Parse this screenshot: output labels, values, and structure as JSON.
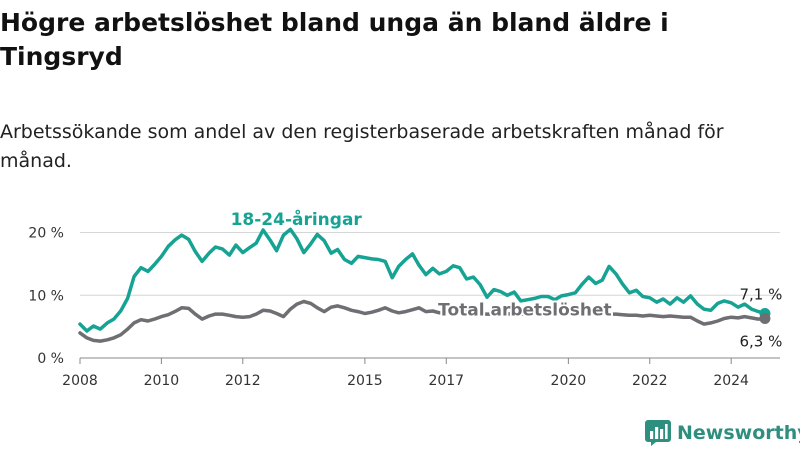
{
  "title": "Högre arbetslöshet bland unga än bland äldre i Tingsryd",
  "subtitle": "Arbetssökande som andel av den registerbaserade arbetskraften månad för månad.",
  "brand": {
    "name": "Newsworthy",
    "icon": "newsworthy-bar-chart-icon",
    "color": "#2f8f7f"
  },
  "chart_data": {
    "type": "line",
    "xlim": [
      2008,
      2025.2
    ],
    "ylim": [
      0,
      22
    ],
    "x_ticks": [
      2008,
      2010,
      2012,
      2015,
      2017,
      2020,
      2022,
      2024
    ],
    "y_ticks": [
      {
        "value": 0,
        "label": "0 %"
      },
      {
        "value": 10,
        "label": "10 %"
      },
      {
        "value": 20,
        "label": "20 %"
      }
    ],
    "grid": true,
    "series": [
      {
        "name": "18-24-åringar",
        "color": "#16a393",
        "end_label": "7,1 %",
        "points": [
          [
            2008.0,
            5.4
          ],
          [
            2008.17,
            4.3
          ],
          [
            2008.33,
            5.1
          ],
          [
            2008.5,
            4.6
          ],
          [
            2008.67,
            5.6
          ],
          [
            2008.83,
            6.2
          ],
          [
            2009.0,
            7.5
          ],
          [
            2009.17,
            9.5
          ],
          [
            2009.33,
            13.0
          ],
          [
            2009.5,
            14.4
          ],
          [
            2009.67,
            13.8
          ],
          [
            2009.83,
            14.9
          ],
          [
            2010.0,
            16.2
          ],
          [
            2010.17,
            17.8
          ],
          [
            2010.33,
            18.8
          ],
          [
            2010.5,
            19.6
          ],
          [
            2010.67,
            18.9
          ],
          [
            2010.83,
            17.0
          ],
          [
            2011.0,
            15.4
          ],
          [
            2011.17,
            16.7
          ],
          [
            2011.33,
            17.7
          ],
          [
            2011.5,
            17.4
          ],
          [
            2011.67,
            16.4
          ],
          [
            2011.83,
            18.0
          ],
          [
            2012.0,
            16.8
          ],
          [
            2012.17,
            17.6
          ],
          [
            2012.33,
            18.3
          ],
          [
            2012.5,
            20.4
          ],
          [
            2012.67,
            18.8
          ],
          [
            2012.83,
            17.1
          ],
          [
            2013.0,
            19.6
          ],
          [
            2013.17,
            20.5
          ],
          [
            2013.33,
            19.0
          ],
          [
            2013.5,
            16.8
          ],
          [
            2013.67,
            18.2
          ],
          [
            2013.83,
            19.7
          ],
          [
            2014.0,
            18.7
          ],
          [
            2014.17,
            16.7
          ],
          [
            2014.33,
            17.3
          ],
          [
            2014.5,
            15.7
          ],
          [
            2014.67,
            15.1
          ],
          [
            2014.83,
            16.2
          ],
          [
            2015.0,
            16.0
          ],
          [
            2015.17,
            15.8
          ],
          [
            2015.33,
            15.7
          ],
          [
            2015.5,
            15.4
          ],
          [
            2015.67,
            12.8
          ],
          [
            2015.83,
            14.6
          ],
          [
            2016.0,
            15.7
          ],
          [
            2016.17,
            16.6
          ],
          [
            2016.33,
            14.8
          ],
          [
            2016.5,
            13.3
          ],
          [
            2016.67,
            14.3
          ],
          [
            2016.83,
            13.4
          ],
          [
            2017.0,
            13.8
          ],
          [
            2017.17,
            14.7
          ],
          [
            2017.33,
            14.4
          ],
          [
            2017.5,
            12.6
          ],
          [
            2017.67,
            12.9
          ],
          [
            2017.83,
            11.7
          ],
          [
            2018.0,
            9.7
          ],
          [
            2018.17,
            10.9
          ],
          [
            2018.33,
            10.6
          ],
          [
            2018.5,
            10.0
          ],
          [
            2018.67,
            10.5
          ],
          [
            2018.83,
            9.1
          ],
          [
            2019.0,
            9.3
          ],
          [
            2019.17,
            9.5
          ],
          [
            2019.33,
            9.8
          ],
          [
            2019.5,
            9.8
          ],
          [
            2019.67,
            9.3
          ],
          [
            2019.83,
            9.9
          ],
          [
            2020.0,
            10.1
          ],
          [
            2020.17,
            10.4
          ],
          [
            2020.33,
            11.7
          ],
          [
            2020.5,
            12.9
          ],
          [
            2020.67,
            11.9
          ],
          [
            2020.83,
            12.4
          ],
          [
            2021.0,
            14.6
          ],
          [
            2021.17,
            13.4
          ],
          [
            2021.33,
            11.8
          ],
          [
            2021.5,
            10.4
          ],
          [
            2021.67,
            10.8
          ],
          [
            2021.83,
            9.8
          ],
          [
            2022.0,
            9.6
          ],
          [
            2022.17,
            8.9
          ],
          [
            2022.33,
            9.4
          ],
          [
            2022.5,
            8.6
          ],
          [
            2022.67,
            9.6
          ],
          [
            2022.83,
            8.9
          ],
          [
            2023.0,
            9.9
          ],
          [
            2023.17,
            8.6
          ],
          [
            2023.33,
            7.8
          ],
          [
            2023.5,
            7.6
          ],
          [
            2023.67,
            8.7
          ],
          [
            2023.83,
            9.1
          ],
          [
            2024.0,
            8.8
          ],
          [
            2024.17,
            8.1
          ],
          [
            2024.33,
            8.6
          ],
          [
            2024.5,
            7.8
          ],
          [
            2024.67,
            7.4
          ],
          [
            2024.83,
            7.1
          ]
        ]
      },
      {
        "name": "Total arbetslöshet",
        "color": "#6e6e73",
        "end_label": "6,3 %",
        "points": [
          [
            2008.0,
            4.0
          ],
          [
            2008.17,
            3.2
          ],
          [
            2008.33,
            2.8
          ],
          [
            2008.5,
            2.7
          ],
          [
            2008.67,
            2.9
          ],
          [
            2008.83,
            3.2
          ],
          [
            2009.0,
            3.7
          ],
          [
            2009.17,
            4.6
          ],
          [
            2009.33,
            5.6
          ],
          [
            2009.5,
            6.1
          ],
          [
            2009.67,
            5.9
          ],
          [
            2009.83,
            6.2
          ],
          [
            2010.0,
            6.6
          ],
          [
            2010.17,
            6.9
          ],
          [
            2010.33,
            7.4
          ],
          [
            2010.5,
            8.0
          ],
          [
            2010.67,
            7.9
          ],
          [
            2010.83,
            7.0
          ],
          [
            2011.0,
            6.2
          ],
          [
            2011.17,
            6.7
          ],
          [
            2011.33,
            7.0
          ],
          [
            2011.5,
            7.0
          ],
          [
            2011.67,
            6.8
          ],
          [
            2011.83,
            6.6
          ],
          [
            2012.0,
            6.5
          ],
          [
            2012.17,
            6.6
          ],
          [
            2012.33,
            7.0
          ],
          [
            2012.5,
            7.6
          ],
          [
            2012.67,
            7.5
          ],
          [
            2012.83,
            7.1
          ],
          [
            2013.0,
            6.6
          ],
          [
            2013.17,
            7.8
          ],
          [
            2013.33,
            8.6
          ],
          [
            2013.5,
            9.0
          ],
          [
            2013.67,
            8.7
          ],
          [
            2013.83,
            8.0
          ],
          [
            2014.0,
            7.4
          ],
          [
            2014.17,
            8.1
          ],
          [
            2014.33,
            8.3
          ],
          [
            2014.5,
            8.0
          ],
          [
            2014.67,
            7.6
          ],
          [
            2014.83,
            7.4
          ],
          [
            2015.0,
            7.1
          ],
          [
            2015.17,
            7.3
          ],
          [
            2015.33,
            7.6
          ],
          [
            2015.5,
            8.0
          ],
          [
            2015.67,
            7.5
          ],
          [
            2015.83,
            7.2
          ],
          [
            2016.0,
            7.4
          ],
          [
            2016.17,
            7.7
          ],
          [
            2016.33,
            8.0
          ],
          [
            2016.5,
            7.4
          ],
          [
            2016.67,
            7.5
          ],
          [
            2016.83,
            7.2
          ],
          [
            2017.0,
            7.1
          ],
          [
            2017.17,
            7.3
          ],
          [
            2017.33,
            7.6
          ],
          [
            2017.5,
            7.4
          ],
          [
            2017.67,
            7.2
          ],
          [
            2017.83,
            7.0
          ],
          [
            2018.0,
            7.0
          ],
          [
            2018.17,
            7.0
          ],
          [
            2018.33,
            7.1
          ],
          [
            2018.5,
            7.0
          ],
          [
            2018.67,
            7.1
          ],
          [
            2018.83,
            7.0
          ],
          [
            2019.0,
            7.0
          ],
          [
            2019.17,
            7.1
          ],
          [
            2019.33,
            7.1
          ],
          [
            2019.5,
            7.0
          ],
          [
            2019.67,
            7.1
          ],
          [
            2019.83,
            7.0
          ],
          [
            2020.0,
            7.1
          ],
          [
            2020.17,
            7.2
          ],
          [
            2020.33,
            7.4
          ],
          [
            2020.5,
            7.3
          ],
          [
            2020.67,
            7.1
          ],
          [
            2020.83,
            7.0
          ],
          [
            2021.0,
            7.0
          ],
          [
            2021.17,
            7.0
          ],
          [
            2021.33,
            6.9
          ],
          [
            2021.5,
            6.8
          ],
          [
            2021.67,
            6.8
          ],
          [
            2021.83,
            6.7
          ],
          [
            2022.0,
            6.8
          ],
          [
            2022.17,
            6.7
          ],
          [
            2022.33,
            6.6
          ],
          [
            2022.5,
            6.7
          ],
          [
            2022.67,
            6.6
          ],
          [
            2022.83,
            6.5
          ],
          [
            2023.0,
            6.5
          ],
          [
            2023.17,
            5.9
          ],
          [
            2023.33,
            5.4
          ],
          [
            2023.5,
            5.6
          ],
          [
            2023.67,
            5.9
          ],
          [
            2023.83,
            6.3
          ],
          [
            2024.0,
            6.5
          ],
          [
            2024.17,
            6.4
          ],
          [
            2024.33,
            6.6
          ],
          [
            2024.5,
            6.4
          ],
          [
            2024.67,
            6.2
          ],
          [
            2024.83,
            6.3
          ]
        ]
      }
    ],
    "annotations": [
      {
        "text": "18-24-åringar",
        "series": 0,
        "x": 2011.7,
        "y": 21.2,
        "anchor": "start",
        "color": "#16a393"
      },
      {
        "text": "Total arbetslöshet",
        "series": 1,
        "x": 2016.8,
        "y": 6.8,
        "anchor": "start",
        "color": "#6e6e73"
      }
    ]
  }
}
